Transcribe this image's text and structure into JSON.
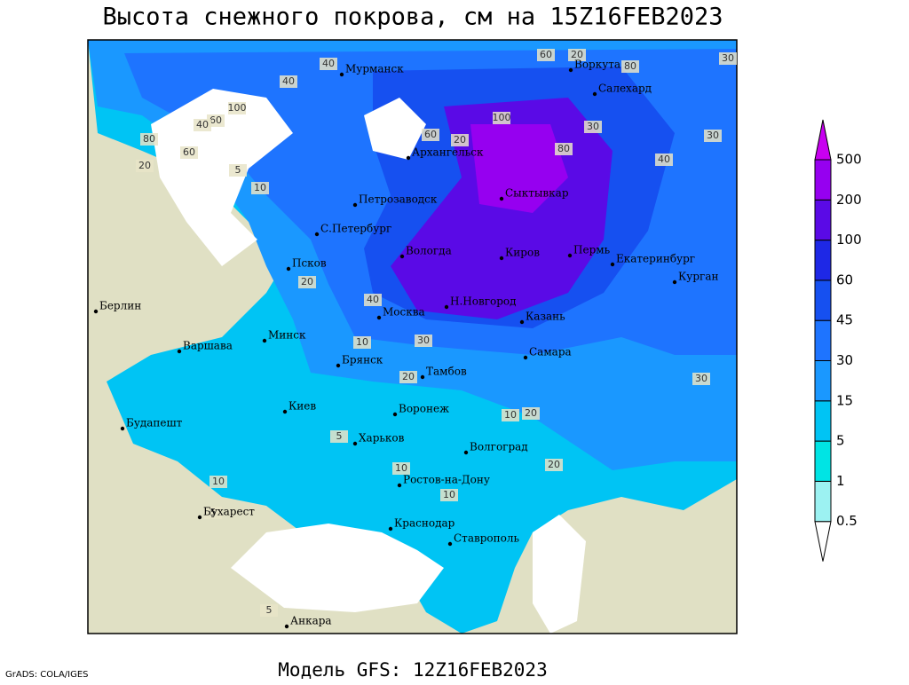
{
  "title": "Высота снежного покрова, см на 15Z16FEB2023",
  "footer": "Модель GFS: 12Z16FEB2023",
  "credit": "GrADS: COLA/IGES",
  "cities": [
    "Мурманск",
    "Воркута",
    "Салехард",
    "Архангельск",
    "Сыктывкар",
    "Петрозаводск",
    "С.Петербург",
    "Вологда",
    "Киров",
    "Пермь",
    "Екатеринбург",
    "Курган",
    "Псков",
    "Москва",
    "Н.Новгород",
    "Казань",
    "Берлин",
    "Варшава",
    "Минск",
    "Брянск",
    "Тамбов",
    "Самара",
    "Воронеж",
    "Киев",
    "Будапешт",
    "Харьков",
    "Волгоград",
    "Ростов-на-Дону",
    "Бухарест",
    "Краснодар",
    "Ставрополь",
    "Анкара"
  ],
  "contour_labels": [
    40,
    60,
    20,
    80,
    30,
    40,
    100,
    60,
    40,
    80,
    60,
    20,
    10,
    5,
    20,
    80,
    60,
    100,
    30,
    40,
    30,
    20,
    30,
    20,
    10,
    20,
    10,
    5,
    10,
    10,
    5,
    5,
    10,
    20,
    30,
    40
  ],
  "legend": {
    "levels": [
      0.5,
      1,
      5,
      15,
      30,
      45,
      60,
      100,
      200,
      500
    ],
    "colors": [
      "#9cf2f2",
      "#00e4e4",
      "#00c4f4",
      "#1a98ff",
      "#1e74ff",
      "#1650f0",
      "#1e28e6",
      "#5a0ae6",
      "#9600f0",
      "#c800f0"
    ]
  }
}
